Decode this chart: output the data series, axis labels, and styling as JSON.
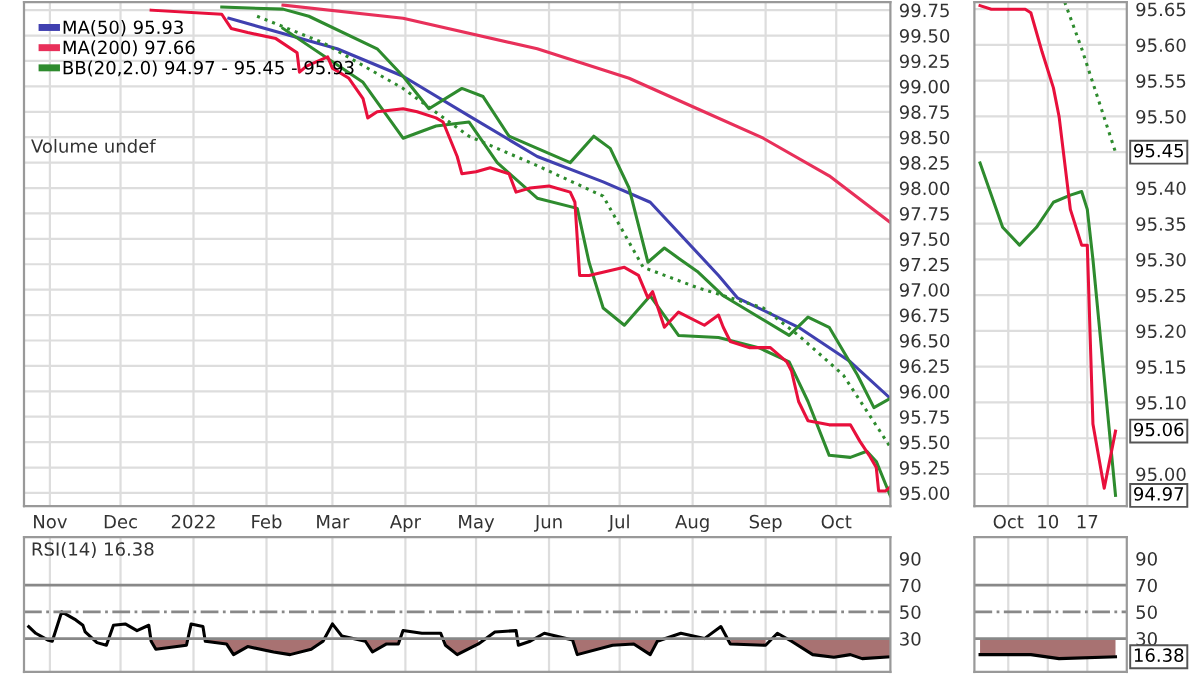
{
  "chart_data": [
    {
      "type": "line",
      "xlim": [
        "2021-10-21",
        "2022-10-24"
      ],
      "ylim": [
        94.87,
        99.83
      ],
      "xticks": [
        {
          "value": "2021-11-01",
          "label": "Nov"
        },
        {
          "value": "2021-12-01",
          "label": "Dec"
        },
        {
          "value": "2022-01-01",
          "label": "2022"
        },
        {
          "value": "2022-02-01",
          "label": "Feb"
        },
        {
          "value": "2022-03-01",
          "label": "Mar"
        },
        {
          "value": "2022-04-01",
          "label": "Apr"
        },
        {
          "value": "2022-05-01",
          "label": "May"
        },
        {
          "value": "2022-06-01",
          "label": "Jun"
        },
        {
          "value": "2022-07-01",
          "label": "Jul"
        },
        {
          "value": "2022-08-01",
          "label": "Aug"
        },
        {
          "value": "2022-09-01",
          "label": "Sep"
        },
        {
          "value": "2022-10-01",
          "label": "Oct"
        }
      ],
      "yticks": [
        {
          "value": 95,
          "label": "95.00"
        },
        {
          "value": 95.25,
          "label": "95.25"
        },
        {
          "value": 95.5,
          "label": "95.50"
        },
        {
          "value": 95.75,
          "label": "95.75"
        },
        {
          "value": 96,
          "label": "96.00"
        },
        {
          "value": 96.25,
          "label": "96.25"
        },
        {
          "value": 96.5,
          "label": "96.50"
        },
        {
          "value": 96.75,
          "label": "96.75"
        },
        {
          "value": 97,
          "label": "97.00"
        },
        {
          "value": 97.25,
          "label": "97.25"
        },
        {
          "value": 97.5,
          "label": "97.50"
        },
        {
          "value": 97.75,
          "label": "97.75"
        },
        {
          "value": 98,
          "label": "98.00"
        },
        {
          "value": 98.25,
          "label": "98.25"
        },
        {
          "value": 98.5,
          "label": "98.50"
        },
        {
          "value": 98.75,
          "label": "98.75"
        },
        {
          "value": 99,
          "label": "99.00"
        },
        {
          "value": 99.25,
          "label": "99.25"
        },
        {
          "value": 99.5,
          "label": "99.50"
        },
        {
          "value": 99.75,
          "label": "99.75"
        }
      ],
      "grid": true,
      "legend": "top left",
      "annotations": [
        "Volume undef"
      ],
      "series": [
        {
          "name": "MA(50) 95.93",
          "color": "#4040b0",
          "x": [
            "2022-01-16",
            "2022-03-03",
            "2022-03-31",
            "2022-04-28",
            "2022-05-27",
            "2022-06-24",
            "2022-07-14",
            "2022-08-12",
            "2022-08-20",
            "2022-09-15",
            "2022-10-07",
            "2022-10-24"
          ],
          "values": [
            99.67,
            99.37,
            99.1,
            98.71,
            98.31,
            98.06,
            97.86,
            97.14,
            96.92,
            96.63,
            96.29,
            95.93
          ]
        },
        {
          "name": "MA(200) 97.66",
          "color": "#e8305a",
          "x": [
            "2022-02-08",
            "2022-03-31",
            "2022-05-27",
            "2022-07-05",
            "2022-08-03",
            "2022-08-31",
            "2022-09-28",
            "2022-10-24"
          ],
          "values": [
            99.8,
            99.67,
            99.37,
            99.08,
            98.78,
            98.49,
            98.12,
            97.66
          ]
        },
        {
          "name": "BB(20,2.0) 94.97 - 95.45 - 95.93",
          "color": "#2e8b2e",
          "x": [
            "2022-01-13",
            "2022-02-08",
            "2022-02-19",
            "2022-03-20",
            "2022-03-31",
            "2022-04-11",
            "2022-04-25",
            "2022-05-04",
            "2022-05-15",
            "2022-05-27",
            "2022-06-10",
            "2022-06-20",
            "2022-06-27",
            "2022-07-05",
            "2022-07-13",
            "2022-07-20",
            "2022-07-26",
            "2022-08-03",
            "2022-08-14",
            "2022-09-11",
            "2022-09-19",
            "2022-09-28",
            "2022-10-10",
            "2022-10-17",
            "2022-10-24"
          ],
          "values": [
            99.78,
            99.76,
            99.69,
            99.37,
            99.1,
            98.78,
            98.98,
            98.9,
            98.51,
            98.39,
            98.25,
            98.51,
            98.39,
            98.0,
            97.27,
            97.41,
            97.31,
            97.18,
            96.94,
            96.55,
            96.73,
            96.63,
            96.16,
            95.84,
            95.93
          ]
        },
        {
          "color": "#2e8b2e",
          "line_style": "dotted",
          "x": [
            "2022-01-28",
            "2022-02-25",
            "2022-03-31",
            "2022-04-28",
            "2022-05-27",
            "2022-06-24",
            "2022-07-11",
            "2022-08-03",
            "2022-08-31",
            "2022-09-15",
            "2022-10-04",
            "2022-10-24"
          ],
          "values": [
            99.69,
            99.43,
            98.98,
            98.51,
            98.22,
            97.92,
            97.22,
            97.02,
            96.82,
            96.55,
            96.16,
            95.45
          ]
        },
        {
          "color": "#2e8b2e",
          "x": [
            "2022-02-08",
            "2022-03-14",
            "2022-03-31",
            "2022-04-14",
            "2022-04-28",
            "2022-05-10",
            "2022-05-27",
            "2022-06-13",
            "2022-06-18",
            "2022-06-24",
            "2022-07-03",
            "2022-07-14",
            "2022-07-26",
            "2022-08-12",
            "2022-08-29",
            "2022-09-11",
            "2022-09-19",
            "2022-09-28",
            "2022-10-07",
            "2022-10-14",
            "2022-10-18",
            "2022-10-24"
          ],
          "values": [
            99.57,
            99.04,
            98.49,
            98.61,
            98.65,
            98.25,
            97.9,
            97.8,
            97.27,
            96.82,
            96.65,
            96.94,
            96.55,
            96.53,
            96.43,
            96.29,
            95.9,
            95.37,
            95.35,
            95.41,
            95.31,
            94.97
          ]
        },
        {
          "color": "#e8103c",
          "x": [
            "2021-12-14",
            "2022-01-13",
            "2022-01-17",
            "2022-01-24",
            "2022-02-05",
            "2022-02-14",
            "2022-02-15",
            "2022-02-18",
            "2022-02-25",
            "2022-02-27",
            "2022-03-01",
            "2022-03-08",
            "2022-03-14",
            "2022-03-16",
            "2022-03-20",
            "2022-03-31",
            "2022-04-06",
            "2022-04-14",
            "2022-04-17",
            "2022-04-23",
            "2022-04-25",
            "2022-05-01",
            "2022-05-07",
            "2022-05-15",
            "2022-05-18",
            "2022-05-24",
            "2022-06-01",
            "2022-06-10",
            "2022-06-12",
            "2022-06-14",
            "2022-06-18",
            "2022-07-03",
            "2022-07-09",
            "2022-07-13",
            "2022-07-15",
            "2022-07-20",
            "2022-07-26",
            "2022-08-06",
            "2022-08-12",
            "2022-08-14",
            "2022-08-17",
            "2022-08-25",
            "2022-09-03",
            "2022-09-10",
            "2022-09-12",
            "2022-09-15",
            "2022-09-19",
            "2022-09-28",
            "2022-10-07",
            "2022-10-11",
            "2022-10-15",
            "2022-10-18",
            "2022-10-19",
            "2022-10-22",
            "2022-10-24"
          ],
          "values": [
            99.75,
            99.71,
            99.57,
            99.53,
            99.47,
            99.33,
            99.14,
            99.2,
            99.27,
            99.29,
            99.18,
            99.08,
            98.88,
            98.69,
            98.75,
            98.78,
            98.75,
            98.69,
            98.65,
            98.31,
            98.14,
            98.16,
            98.2,
            98.14,
            97.96,
            98.0,
            98.02,
            97.96,
            97.86,
            97.14,
            97.14,
            97.22,
            97.14,
            96.92,
            96.98,
            96.63,
            96.78,
            96.65,
            96.75,
            96.63,
            96.49,
            96.43,
            96.43,
            96.29,
            96.2,
            95.9,
            95.71,
            95.67,
            95.67,
            95.51,
            95.37,
            95.25,
            95.02,
            95.02,
            95.06
          ]
        }
      ]
    },
    {
      "type": "line",
      "xlim": [
        "2022-09-27",
        "2022-10-24"
      ],
      "ylim": [
        94.955,
        95.66
      ],
      "xticks": [
        {
          "value": "2022-10-03",
          "label": "Oct"
        },
        {
          "value": "2022-10-10",
          "label": "10"
        },
        {
          "value": "2022-10-17",
          "label": "17"
        }
      ],
      "yticks": [
        {
          "value": 95,
          "label": "95.00"
        },
        {
          "value": 95.05,
          "label": null
        },
        {
          "value": 95.1,
          "label": "95.10"
        },
        95.15,
        {
          "value": 95.2,
          "label": "95.20"
        },
        95.25,
        {
          "value": 95.3,
          "label": "95.30"
        },
        95.35,
        {
          "value": 95.4,
          "label": "95.40"
        },
        {
          "value": 95.45,
          "label": null
        },
        {
          "value": 95.5,
          "label": "95.50"
        },
        95.55,
        {
          "value": 95.6,
          "label": "95.60"
        },
        95.65
      ],
      "grid": true,
      "annotations": [
        {
          "text": "95.45",
          "x": "2022-10-22",
          "y": 95.45
        },
        {
          "text": "95.06",
          "x": "2022-10-22",
          "y": 95.06
        },
        {
          "text": "94.97",
          "x": "2022-10-22",
          "y": 94.97
        }
      ],
      "series": [
        {
          "color": "#2e8b2e",
          "line_style": "dotted",
          "x": [
            "2022-10-13",
            "2022-10-16",
            "2022-10-22"
          ],
          "values": [
            95.66,
            95.595,
            95.45
          ]
        },
        {
          "color": "#2e8b2e",
          "x": [
            "2022-09-28",
            "2022-10-02",
            "2022-10-05",
            "2022-10-08",
            "2022-10-11",
            "2022-10-14",
            "2022-10-16",
            "2022-10-17",
            "2022-10-18",
            "2022-10-22"
          ],
          "values": [
            95.435,
            95.345,
            95.32,
            95.345,
            95.38,
            95.39,
            95.395,
            95.37,
            95.3,
            94.97
          ]
        },
        {
          "color": "#e8103c",
          "x": [
            "2022-09-28",
            "2022-09-30",
            "2022-10-06",
            "2022-10-07",
            "2022-10-09",
            "2022-10-11",
            "2022-10-12",
            "2022-10-14",
            "2022-10-16",
            "2022-10-17",
            "2022-10-18",
            "2022-10-20",
            "2022-10-22"
          ],
          "values": [
            95.655,
            95.65,
            95.65,
            95.645,
            95.59,
            95.54,
            95.5,
            95.37,
            95.32,
            95.32,
            95.07,
            94.98,
            95.06
          ]
        }
      ]
    },
    {
      "type": "line",
      "xlim": [
        "2021-10-21",
        "2022-10-24"
      ],
      "ylim": [
        5,
        106
      ],
      "tick_labels": "y",
      "grid": "x",
      "xticks": [
        {
          "value": "2021-11-01",
          "label": null
        },
        {
          "value": "2021-12-01",
          "label": null
        },
        {
          "value": "2022-01-01",
          "label": null
        },
        {
          "value": "2022-02-01",
          "label": null
        },
        {
          "value": "2022-03-01",
          "label": null
        },
        {
          "value": "2022-04-01",
          "label": null
        },
        {
          "value": "2022-05-01",
          "label": null
        },
        {
          "value": "2022-06-01",
          "label": null
        },
        {
          "value": "2022-07-01",
          "label": null
        },
        {
          "value": "2022-08-01",
          "label": null
        },
        {
          "value": "2022-09-01",
          "label": null
        },
        {
          "value": "2022-10-01",
          "label": null
        }
      ],
      "yticks": [
        30,
        50,
        70,
        90
      ],
      "annotations": [
        "RSI(14) 16.38"
      ],
      "ref_lines": [
        {
          "axis": "y",
          "value": 70,
          "color": "#888888",
          "line_style": "solid"
        },
        {
          "axis": "y",
          "value": 50,
          "color": "#888888",
          "line_style": "dashed"
        },
        {
          "axis": "y",
          "value": 30,
          "color": "#888888",
          "line_style": "solid"
        }
      ],
      "series": [
        {
          "color": "#000000",
          "x": [
            "2021-10-23",
            "2021-10-26",
            "2021-10-31",
            "2021-11-02",
            "2021-11-06",
            "2021-11-12",
            "2021-11-15",
            "2021-11-16",
            "2021-11-21",
            "2021-11-25",
            "2021-11-28",
            "2021-12-03",
            "2021-12-08",
            "2021-12-13",
            "2021-12-14",
            "2021-12-16",
            "2021-12-29",
            "2021-12-31",
            "2022-01-05",
            "2022-01-06",
            "2022-01-15",
            "2022-01-18",
            "2022-01-24",
            "2022-02-04",
            "2022-02-11",
            "2022-02-20",
            "2022-02-25",
            "2022-03-01",
            "2022-03-05",
            "2022-03-15",
            "2022-03-18",
            "2022-03-24",
            "2022-03-29",
            "2022-03-31",
            "2022-04-08",
            "2022-04-16",
            "2022-04-18",
            "2022-04-23",
            "2022-05-02",
            "2022-05-09",
            "2022-05-18",
            "2022-05-19",
            "2022-05-24",
            "2022-05-30",
            "2022-06-11",
            "2022-06-13",
            "2022-06-28",
            "2022-07-07",
            "2022-07-14",
            "2022-07-17",
            "2022-07-27",
            "2022-08-06",
            "2022-08-13",
            "2022-08-17",
            "2022-09-01",
            "2022-09-06",
            "2022-09-12",
            "2022-09-21",
            "2022-09-30",
            "2022-10-07",
            "2022-10-12",
            "2022-10-24"
          ],
          "values": [
            39,
            34,
            29,
            28,
            50,
            44,
            40,
            35,
            27,
            25,
            40,
            41,
            36,
            40,
            28,
            22,
            25,
            41,
            39,
            28,
            26,
            18,
            24,
            20,
            18,
            22,
            28,
            41,
            32,
            28,
            20,
            26,
            26,
            36,
            34,
            34,
            25,
            18,
            26,
            35,
            36,
            25,
            28,
            34,
            29,
            18,
            25,
            26,
            18,
            28,
            34,
            30,
            39,
            26,
            25,
            34,
            28,
            18,
            16,
            18,
            15,
            16.38
          ],
          "lower": [
            null,
            null,
            null,
            null,
            null,
            null,
            null,
            null,
            null,
            null,
            null,
            null,
            null,
            null,
            28,
            22,
            25,
            null,
            null,
            28,
            26,
            18,
            24,
            20,
            18,
            22,
            28,
            null,
            null,
            28,
            20,
            26,
            26,
            null,
            null,
            null,
            25,
            18,
            26,
            null,
            null,
            null,
            null,
            null,
            29,
            18,
            25,
            26,
            18,
            28,
            null,
            null,
            null,
            26,
            25,
            null,
            28,
            18,
            16,
            18,
            15,
            16.38
          ],
          "upper": [
            null,
            null,
            null,
            null,
            null,
            null,
            null,
            null,
            null,
            null,
            null,
            null,
            null,
            null,
            30,
            30,
            30,
            null,
            null,
            30,
            30,
            30,
            30,
            30,
            30,
            30,
            30,
            null,
            null,
            30,
            30,
            30,
            30,
            null,
            null,
            null,
            30,
            30,
            30,
            null,
            null,
            null,
            null,
            null,
            30,
            30,
            30,
            30,
            30,
            30,
            null,
            null,
            null,
            30,
            30,
            null,
            30,
            30,
            30,
            30,
            30,
            30
          ]
        }
      ]
    },
    {
      "type": "line",
      "xlim": [
        "2022-09-27",
        "2022-10-24"
      ],
      "ylim": [
        5,
        106
      ],
      "tick_labels": "y",
      "grid": "x",
      "xticks": [
        {
          "value": "2022-10-03",
          "label": null
        },
        {
          "value": "2022-10-10",
          "label": null
        },
        {
          "value": "2022-10-17",
          "label": null
        }
      ],
      "yticks": [
        30,
        50,
        70,
        90
      ],
      "annotations": [
        {
          "text": "16.38",
          "x": "2022-10-22",
          "y": 16.38
        }
      ],
      "ref_lines": [
        {
          "axis": "y",
          "value": 70,
          "color": "#888888",
          "line_style": "solid"
        },
        {
          "axis": "y",
          "value": 50,
          "color": "#888888",
          "line_style": "dashed"
        },
        {
          "axis": "y",
          "value": 30,
          "color": "#888888",
          "line_style": "solid"
        }
      ],
      "series": [
        {
          "color": "#000000",
          "x": [
            "2022-09-28",
            "2022-10-07",
            "2022-10-12",
            "2022-10-22"
          ],
          "values": [
            18,
            18,
            15,
            16.38
          ],
          "lower": [
            18,
            18,
            15,
            16.38
          ],
          "upper": [
            30,
            30,
            30,
            30
          ]
        }
      ]
    }
  ]
}
